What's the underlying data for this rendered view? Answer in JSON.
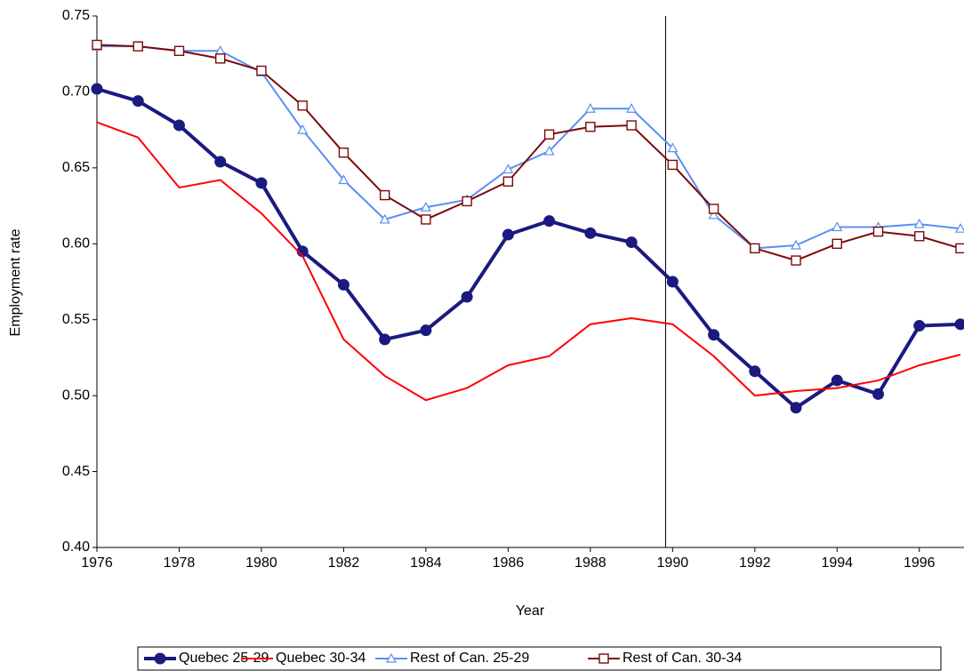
{
  "chart_data": {
    "type": "line",
    "x_label": "Year",
    "y_label": "Employment rate",
    "x": [
      1976,
      1977,
      1978,
      1979,
      1980,
      1981,
      1982,
      1983,
      1984,
      1985,
      1986,
      1987,
      1988,
      1989,
      1990,
      1991,
      1992,
      1993,
      1994,
      1995,
      1996,
      1997
    ],
    "series": [
      {
        "name": "Quebec 25-29",
        "color": "#1a1a80",
        "marker": "circle",
        "values": [
          0.702,
          0.694,
          0.678,
          0.654,
          0.64,
          0.595,
          0.573,
          0.537,
          0.543,
          0.565,
          0.606,
          0.615,
          0.607,
          0.601,
          0.575,
          0.54,
          0.516,
          0.492,
          0.51,
          0.501,
          0.546,
          0.547
        ]
      },
      {
        "name": "Quebec 30-34",
        "color": "#ff0000",
        "marker": "none",
        "values": [
          0.68,
          0.67,
          0.637,
          0.642,
          0.62,
          0.592,
          0.537,
          0.513,
          0.497,
          0.505,
          0.52,
          0.526,
          0.547,
          0.551,
          0.547,
          0.526,
          0.5,
          0.503,
          0.505,
          0.51,
          0.52,
          0.527
        ]
      },
      {
        "name": "Rest of Can. 25-29",
        "color": "#5b8ff0",
        "marker": "triangle",
        "values": [
          0.73,
          0.73,
          0.727,
          0.727,
          0.713,
          0.675,
          0.642,
          0.616,
          0.624,
          0.629,
          0.649,
          0.661,
          0.689,
          0.689,
          0.663,
          0.619,
          0.597,
          0.599,
          0.611,
          0.611,
          0.613,
          0.61
        ]
      },
      {
        "name": "Rest of Can. 30-34",
        "color": "#7b0a0a",
        "marker": "square",
        "values": [
          0.731,
          0.73,
          0.727,
          0.722,
          0.714,
          0.691,
          0.66,
          0.632,
          0.616,
          0.628,
          0.641,
          0.672,
          0.677,
          0.678,
          0.652,
          0.623,
          0.597,
          0.589,
          0.6,
          0.608,
          0.605,
          0.597
        ]
      }
    ],
    "xlim": [
      1976,
      1997
    ],
    "xticks": [
      1976,
      1978,
      1980,
      1982,
      1984,
      1986,
      1988,
      1990,
      1992,
      1994,
      1996
    ],
    "ylim": [
      0.4,
      0.75
    ],
    "yticks": [
      {
        "value": 0.4,
        "label": "0.40"
      },
      0.45,
      {
        "value": 0.5,
        "label": "0.50"
      },
      0.55,
      {
        "value": 0.6,
        "label": "0.60"
      },
      0.65,
      {
        "value": 0.7,
        "label": "0.70"
      },
      0.75
    ],
    "vertical_line_x": 1989.83,
    "legend": "bottom"
  }
}
